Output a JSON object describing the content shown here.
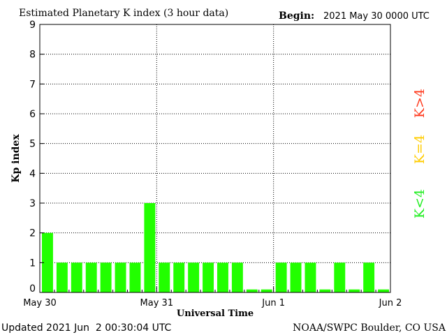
{
  "header": {
    "title": "Estimated Planetary K index (3 hour data)",
    "begin_label": "Begin:",
    "begin_value": "2021 May 30 0000 UTC"
  },
  "footer": {
    "updated": "Updated 2021 Jun  2 00:30:04 UTC",
    "source": "NOAA/SWPC Boulder, CO USA"
  },
  "legend": {
    "items": [
      {
        "label": "K<4",
        "color": "#22ee22"
      },
      {
        "label": "K=4",
        "color": "#ffcc00"
      },
      {
        "label": "K>4",
        "color": "#ff3b1f"
      }
    ]
  },
  "chart_data": {
    "type": "bar",
    "title": "Estimated Planetary K index (3 hour data)",
    "xlabel": "Universal Time",
    "ylabel": "Kp index",
    "ylim": [
      0,
      9
    ],
    "yticks": [
      "0",
      "1",
      "2",
      "3",
      "4",
      "5",
      "6",
      "7",
      "8",
      "9"
    ],
    "xticks": [
      "May 30",
      "May 31",
      "Jun 1",
      "Jun 2"
    ],
    "grid": true,
    "bar_color": "#22ff00",
    "values": [
      2,
      1,
      1,
      1,
      1,
      1,
      1,
      3,
      1,
      1,
      1,
      1,
      1,
      1,
      0.1,
      0.1,
      1,
      1,
      1,
      0.1,
      1,
      0.1,
      1,
      0.1
    ]
  }
}
